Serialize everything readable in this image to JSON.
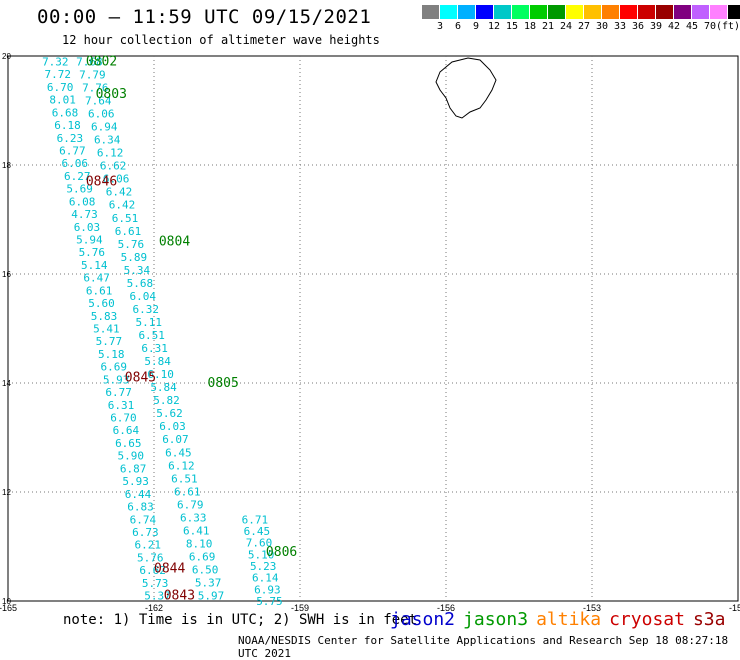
{
  "header": {
    "title": "00:00 – 11:59 UTC 09/15/2021",
    "subtitle": "12 hour collection of altimeter wave heights"
  },
  "scale": {
    "colors": [
      "#808080",
      "#00ffff",
      "#00b0ff",
      "#0000ff",
      "#00c8c8",
      "#00ff60",
      "#00cc00",
      "#009900",
      "#ffff00",
      "#ffc000",
      "#ff8000",
      "#ff0000",
      "#cc0000",
      "#990000",
      "#800080",
      "#c060ff",
      "#ff80ff",
      "#000000"
    ],
    "labels": [
      "3",
      "6",
      "9",
      "12",
      "15",
      "18",
      "21",
      "24",
      "27",
      "30",
      "33",
      "36",
      "39",
      "42",
      "45",
      "70",
      "(ft)"
    ]
  },
  "map": {
    "lon_ticks": [
      "-165",
      "-162",
      "-159",
      "-156",
      "-153",
      "-150"
    ],
    "lat_ticks": [
      "20",
      "18",
      "16",
      "14",
      "12",
      "10"
    ],
    "lon_range": [
      -165,
      -150
    ],
    "lat_range": [
      10,
      20
    ],
    "grid": true
  },
  "colors": {
    "data": "#00c0d0",
    "jason3": "#008000",
    "cryosat": "#800000",
    "grid": "#777777"
  },
  "tracks": [
    {
      "label": "0802",
      "sat": "jason3",
      "values": [
        "7.32",
        "7.68",
        "7.72",
        "7.79",
        "6.70",
        "7.76",
        "8.01",
        "7.64",
        "6.68",
        "6.06",
        "6.18",
        "6.94",
        "6.23",
        "6.34",
        "6.77",
        "6.12",
        "6.06",
        "6.62",
        "6.27",
        "6.06",
        "5.69",
        "6.42",
        "6.08",
        "6.42",
        "4.73",
        "6.51",
        "6.03",
        "6.61",
        "5.94",
        "5.76",
        "5.76",
        "5.89",
        "5.14",
        "5.34",
        "6.47",
        "5.68",
        "6.61",
        "6.04",
        "5.60",
        "6.32",
        "5.83",
        "5.11",
        "5.41",
        "6.51",
        "5.77",
        "6.31",
        "5.18",
        "5.84",
        "6.69",
        "6.10",
        "5.93",
        "5.84",
        "6.77",
        "5.82",
        "6.31",
        "5.62",
        "6.70",
        "6.03",
        "6.64",
        "6.07",
        "6.65",
        "6.45",
        "5.90",
        "6.12",
        "6.87",
        "6.51",
        "5.93",
        "6.61",
        "6.44",
        "6.79",
        "6.83",
        "6.33",
        "6.74",
        "6.41",
        "6.73",
        "8.10",
        "6.21",
        "6.69",
        "5.76",
        "6.50",
        "6.62",
        "5.37",
        "5.73",
        "5.97",
        "5.37"
      ]
    },
    {
      "label": "0803",
      "sat": "jason3"
    },
    {
      "label": "0804",
      "sat": "jason3"
    },
    {
      "label": "0805",
      "sat": "jason3"
    },
    {
      "label": "0806",
      "sat": "jason3"
    },
    {
      "label": "0846",
      "sat": "cryosat"
    },
    {
      "label": "0845",
      "sat": "cryosat"
    },
    {
      "label": "0844",
      "sat": "cryosat"
    },
    {
      "label": "0843",
      "sat": "cryosat"
    }
  ],
  "track_b_values": [
    "6.71",
    "6.45",
    "7.60",
    "5.10",
    "5.23",
    "6.14",
    "6.93",
    "5.75"
  ],
  "notes": {
    "note": "note: 1) Time is in UTC; 2) SWH is in feet",
    "legend": [
      "jason2",
      "jason3",
      "altika",
      "cryosat",
      "s3a"
    ],
    "legend_colors": [
      "#0000cc",
      "#009900",
      "#ff8000",
      "#cc0000",
      "#990000"
    ],
    "footer": "NOAA/NESDIS Center for Satellite Applications and Research   Sep 18 08:27:18 UTC 2021"
  }
}
